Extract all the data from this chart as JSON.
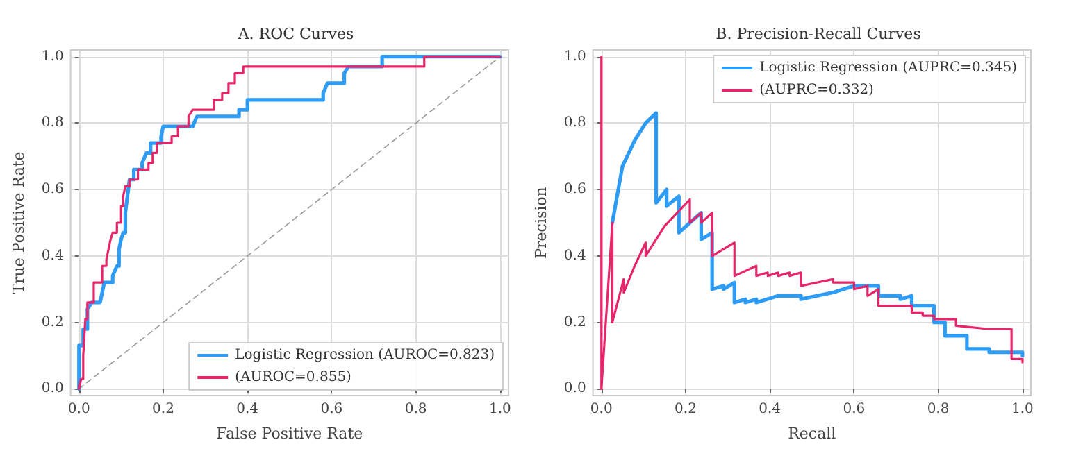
{
  "chart_data": [
    {
      "type": "line",
      "title": "A. ROC Curves",
      "xlabel": "False Positive Rate",
      "ylabel": "True Positive Rate",
      "xlim": [
        -0.02,
        1.02
      ],
      "ylim": [
        -0.02,
        1.02
      ],
      "xticks": [
        {
          "value": 0,
          "label": "0.0"
        },
        {
          "value": 0.2,
          "label": "0.2"
        },
        {
          "value": 0.4,
          "label": "0.4"
        },
        {
          "value": 0.6,
          "label": "0.6"
        },
        {
          "value": 0.8,
          "label": "0.8"
        },
        {
          "value": 1,
          "label": "1.0"
        }
      ],
      "yticks": [
        {
          "value": 0,
          "label": "0.0"
        },
        {
          "value": 0.2,
          "label": "0.2"
        },
        {
          "value": 0.4,
          "label": "0.4"
        },
        {
          "value": 0.6,
          "label": "0.6"
        },
        {
          "value": 0.8,
          "label": "0.8"
        },
        {
          "value": 1,
          "label": "1.0"
        }
      ],
      "grid": true,
      "legend": "bottom right",
      "marker": "none",
      "line_style": "solid",
      "series": [
        {
          "name": "Logistic Regression (AUROC=0.823)",
          "color": "#2e9cf4",
          "x": [
            0,
            0,
            0.01,
            0.01,
            0.02,
            0.02,
            0.03,
            0.05,
            0.055,
            0.06,
            0.08,
            0.08,
            0.09,
            0.095,
            0.095,
            0.1,
            0.105,
            0.11,
            0.11,
            0.115,
            0.12,
            0.13,
            0.13,
            0.15,
            0.15,
            0.16,
            0.17,
            0.17,
            0.195,
            0.195,
            0.2,
            0.27,
            0.28,
            0.38,
            0.38,
            0.4,
            0.4,
            0.58,
            0.58,
            0.59,
            0.63,
            0.63,
            0.64,
            0.72,
            0.72,
            1
          ],
          "values": [
            0,
            0.13,
            0.13,
            0.18,
            0.18,
            0.24,
            0.26,
            0.26,
            0.29,
            0.32,
            0.32,
            0.34,
            0.37,
            0.37,
            0.42,
            0.45,
            0.47,
            0.47,
            0.53,
            0.58,
            0.63,
            0.63,
            0.66,
            0.66,
            0.68,
            0.71,
            0.71,
            0.74,
            0.74,
            0.76,
            0.79,
            0.79,
            0.82,
            0.82,
            0.84,
            0.84,
            0.87,
            0.87,
            0.89,
            0.92,
            0.92,
            0.95,
            0.97,
            0.97,
            1,
            1
          ]
        },
        {
          "name": "(AUROC=0.855)",
          "color": "#e8256a",
          "x": [
            0,
            0.005,
            0.01,
            0.01,
            0.015,
            0.02,
            0.02,
            0.035,
            0.035,
            0.055,
            0.055,
            0.065,
            0.065,
            0.07,
            0.075,
            0.08,
            0.09,
            0.09,
            0.1,
            0.1,
            0.105,
            0.105,
            0.11,
            0.12,
            0.12,
            0.14,
            0.14,
            0.165,
            0.165,
            0.175,
            0.175,
            0.185,
            0.185,
            0.22,
            0.22,
            0.235,
            0.235,
            0.26,
            0.26,
            0.27,
            0.32,
            0.32,
            0.34,
            0.34,
            0.355,
            0.355,
            0.37,
            0.37,
            0.39,
            0.39,
            0.82,
            0.82,
            1
          ],
          "values": [
            0,
            0.03,
            0.03,
            0.1,
            0.21,
            0.21,
            0.26,
            0.26,
            0.32,
            0.32,
            0.37,
            0.37,
            0.39,
            0.42,
            0.45,
            0.47,
            0.47,
            0.5,
            0.5,
            0.55,
            0.55,
            0.58,
            0.61,
            0.61,
            0.63,
            0.63,
            0.66,
            0.66,
            0.68,
            0.68,
            0.71,
            0.71,
            0.74,
            0.74,
            0.76,
            0.76,
            0.79,
            0.79,
            0.82,
            0.84,
            0.84,
            0.87,
            0.87,
            0.89,
            0.89,
            0.92,
            0.92,
            0.95,
            0.95,
            0.97,
            0.97,
            1,
            1
          ]
        },
        {
          "color": "#999999",
          "line_style": "dashed",
          "x": [
            0,
            1
          ],
          "values": [
            0,
            1
          ]
        }
      ]
    },
    {
      "type": "line",
      "title": "B. Precision-Recall Curves",
      "xlabel": "Recall",
      "ylabel": "Precision",
      "xlim": [
        -0.02,
        1.02
      ],
      "ylim": [
        -0.02,
        1.02
      ],
      "xticks": [
        {
          "value": 0,
          "label": "0.0"
        },
        {
          "value": 0.2,
          "label": "0.2"
        },
        {
          "value": 0.4,
          "label": "0.4"
        },
        {
          "value": 0.6,
          "label": "0.6"
        },
        {
          "value": 0.8,
          "label": "0.8"
        },
        {
          "value": 1,
          "label": "1.0"
        }
      ],
      "yticks": [
        {
          "value": 0,
          "label": "0.0"
        },
        {
          "value": 0.2,
          "label": "0.2"
        },
        {
          "value": 0.4,
          "label": "0.4"
        },
        {
          "value": 0.6,
          "label": "0.6"
        },
        {
          "value": 0.8,
          "label": "0.8"
        },
        {
          "value": 1,
          "label": "1.0"
        }
      ],
      "grid": true,
      "legend": "top right",
      "marker": "none",
      "line_style": "solid",
      "series": [
        {
          "name": "Logistic Regression (AUPRC=0.345)",
          "color": "#2e9cf4",
          "x": [
            0.026,
            0.05,
            0.08,
            0.105,
            0.13,
            0.13,
            0.155,
            0.155,
            0.184,
            0.184,
            0.21,
            0.237,
            0.237,
            0.263,
            0.263,
            0.29,
            0.29,
            0.316,
            0.316,
            0.342,
            0.342,
            0.368,
            0.368,
            0.42,
            0.474,
            0.474,
            0.55,
            0.6,
            0.658,
            0.658,
            0.71,
            0.71,
            0.737,
            0.737,
            0.79,
            0.79,
            0.816,
            0.816,
            0.868,
            0.868,
            0.921,
            0.921,
            1,
            1
          ],
          "values": [
            0.5,
            0.67,
            0.75,
            0.8,
            0.83,
            0.56,
            0.6,
            0.55,
            0.58,
            0.47,
            0.5,
            0.53,
            0.45,
            0.47,
            0.3,
            0.31,
            0.3,
            0.32,
            0.26,
            0.27,
            0.26,
            0.27,
            0.26,
            0.28,
            0.28,
            0.27,
            0.29,
            0.31,
            0.31,
            0.28,
            0.28,
            0.27,
            0.28,
            0.25,
            0.25,
            0.2,
            0.2,
            0.16,
            0.16,
            0.12,
            0.12,
            0.11,
            0.11,
            0.1
          ]
        },
        {
          "name": "(AUPRC=0.332)",
          "color": "#e8256a",
          "x": [
            0,
            0,
            0.026,
            0.026,
            0.053,
            0.053,
            0.079,
            0.105,
            0.105,
            0.15,
            0.21,
            0.21,
            0.237,
            0.237,
            0.263,
            0.263,
            0.316,
            0.316,
            0.368,
            0.368,
            0.395,
            0.395,
            0.42,
            0.42,
            0.447,
            0.447,
            0.474,
            0.474,
            0.55,
            0.55,
            0.6,
            0.6,
            0.632,
            0.632,
            0.658,
            0.658,
            0.737,
            0.737,
            0.763,
            0.763,
            0.79,
            0.79,
            0.842,
            0.842,
            0.921,
            0.974,
            0.974,
            1,
            1
          ],
          "values": [
            1,
            0,
            0.5,
            0.2,
            0.33,
            0.29,
            0.37,
            0.44,
            0.4,
            0.49,
            0.57,
            0.5,
            0.53,
            0.5,
            0.53,
            0.4,
            0.44,
            0.34,
            0.37,
            0.34,
            0.35,
            0.34,
            0.35,
            0.34,
            0.35,
            0.34,
            0.35,
            0.31,
            0.33,
            0.32,
            0.32,
            0.3,
            0.31,
            0.28,
            0.3,
            0.25,
            0.25,
            0.23,
            0.23,
            0.22,
            0.22,
            0.21,
            0.21,
            0.19,
            0.18,
            0.18,
            0.09,
            0.09,
            0.08
          ]
        }
      ]
    }
  ]
}
